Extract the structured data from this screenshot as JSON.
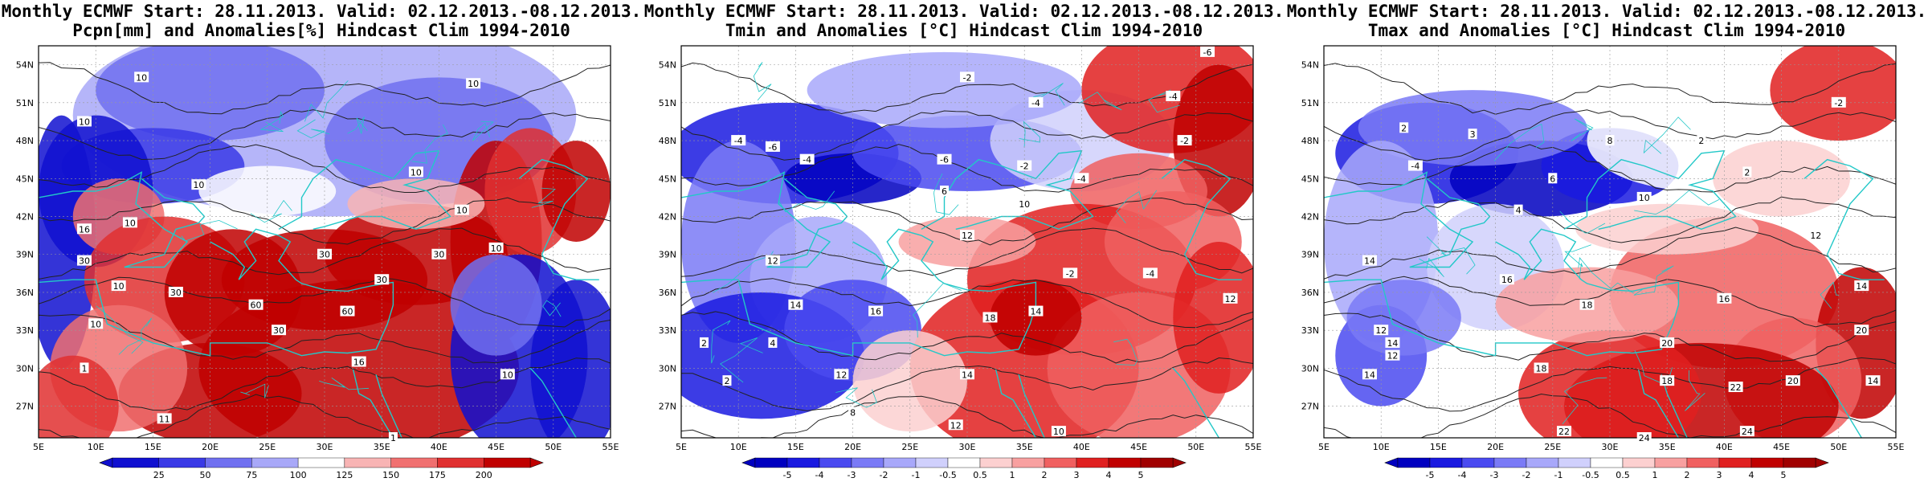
{
  "panels": [
    {
      "id": "precip",
      "title_line1": "Monthly ECMWF Start: 28.11.2013. Valid: 02.12.2013.-08.12.2013.",
      "title_line2": "Pcpn[mm] and Anomalies[%] Hindcast Clim 1994-2010",
      "lat_labels": [
        "54N",
        "51N",
        "48N",
        "45N",
        "42N",
        "39N",
        "36N",
        "33N",
        "30N",
        "27N"
      ],
      "lon_labels": [
        "5E",
        "10E",
        "15E",
        "20E",
        "25E",
        "30E",
        "35E",
        "40E",
        "45E",
        "50E",
        "55E"
      ],
      "colorbar_ticks": [
        "25",
        "50",
        "75",
        "100",
        "125",
        "150",
        "175",
        "200"
      ],
      "colorbar_colors": [
        "#1010d0",
        "#3a3ae6",
        "#7070f0",
        "#a8a8f8",
        "#ffffff",
        "#f8b4b4",
        "#f07070",
        "#e03030",
        "#c00000"
      ],
      "contour_labels": [
        {
          "t": "10",
          "lon": 14,
          "lat": 53
        },
        {
          "t": "10",
          "lon": 43,
          "lat": 52.5
        },
        {
          "t": "10",
          "lon": 9,
          "lat": 49.5
        },
        {
          "t": "10",
          "lon": 19,
          "lat": 44.5
        },
        {
          "t": "10",
          "lon": 38,
          "lat": 45.5
        },
        {
          "t": "10",
          "lon": 42,
          "lat": 42.5
        },
        {
          "t": "10",
          "lon": 13,
          "lat": 41.5
        },
        {
          "t": "16",
          "lon": 9,
          "lat": 41
        },
        {
          "t": "30",
          "lon": 9,
          "lat": 38.5
        },
        {
          "t": "10",
          "lon": 12,
          "lat": 36.5
        },
        {
          "t": "30",
          "lon": 17,
          "lat": 36
        },
        {
          "t": "60",
          "lon": 24,
          "lat": 35
        },
        {
          "t": "30",
          "lon": 26,
          "lat": 33
        },
        {
          "t": "60",
          "lon": 32,
          "lat": 34.5
        },
        {
          "t": "30",
          "lon": 35,
          "lat": 37
        },
        {
          "t": "30",
          "lon": 40,
          "lat": 39
        },
        {
          "t": "10",
          "lon": 45,
          "lat": 39.5
        },
        {
          "t": "30",
          "lon": 30,
          "lat": 39
        },
        {
          "t": "16",
          "lon": 33,
          "lat": 30.5
        },
        {
          "t": "10",
          "lon": 46,
          "lat": 29.5
        },
        {
          "t": "1",
          "lon": 9,
          "lat": 30
        },
        {
          "t": "11",
          "lon": 16,
          "lat": 26
        },
        {
          "t": "1",
          "lon": 36,
          "lat": 24.5
        },
        {
          "t": "10",
          "lon": 10,
          "lat": 33.5
        }
      ]
    },
    {
      "id": "tmin",
      "title_line1": "Monthly ECMWF Start: 28.11.2013. Valid: 02.12.2013.-08.12.2013.",
      "title_line2": "Tmin and Anomalies [°C] Hindcast Clim 1994-2010",
      "lat_labels": [
        "54N",
        "51N",
        "48N",
        "45N",
        "42N",
        "39N",
        "36N",
        "33N",
        "30N",
        "27N"
      ],
      "lon_labels": [
        "5E",
        "10E",
        "15E",
        "20E",
        "25E",
        "30E",
        "35E",
        "40E",
        "45E",
        "50E",
        "55E"
      ],
      "colorbar_ticks": [
        "-5",
        "-4",
        "-3",
        "-2",
        "-1",
        "-0.5",
        "0.5",
        "1",
        "2",
        "3",
        "4",
        "5"
      ],
      "colorbar_colors": [
        "#0000c0",
        "#1a1ae0",
        "#4a4af0",
        "#7a7af6",
        "#a8a8fa",
        "#d0d0fc",
        "#ffffff",
        "#fcd0d0",
        "#f8a0a0",
        "#f06060",
        "#e02020",
        "#c00000",
        "#a00000"
      ],
      "contour_labels": [
        {
          "t": "-6",
          "lon": 51,
          "lat": 55
        },
        {
          "t": "-2",
          "lon": 30,
          "lat": 53
        },
        {
          "t": "-4",
          "lon": 36,
          "lat": 51
        },
        {
          "t": "-4",
          "lon": 48,
          "lat": 51.5
        },
        {
          "t": "-2",
          "lon": 49,
          "lat": 48
        },
        {
          "t": "-4",
          "lon": 10,
          "lat": 48
        },
        {
          "t": "-6",
          "lon": 13,
          "lat": 47.5
        },
        {
          "t": "-4",
          "lon": 16,
          "lat": 46.5
        },
        {
          "t": "-6",
          "lon": 28,
          "lat": 46.5
        },
        {
          "t": "-2",
          "lon": 35,
          "lat": 46
        },
        {
          "t": "-4",
          "lon": 40,
          "lat": 45
        },
        {
          "t": "10",
          "lon": 35,
          "lat": 43
        },
        {
          "t": "6",
          "lon": 28,
          "lat": 44
        },
        {
          "t": "12",
          "lon": 30,
          "lat": 40.5
        },
        {
          "t": "12",
          "lon": 13,
          "lat": 38.5
        },
        {
          "t": "14",
          "lon": 15,
          "lat": 35
        },
        {
          "t": "16",
          "lon": 22,
          "lat": 34.5
        },
        {
          "t": "18",
          "lon": 32,
          "lat": 34
        },
        {
          "t": "14",
          "lon": 36,
          "lat": 34.5
        },
        {
          "t": "-2",
          "lon": 39,
          "lat": 37.5
        },
        {
          "t": "-4",
          "lon": 46,
          "lat": 37.5
        },
        {
          "t": "12",
          "lon": 53,
          "lat": 35.5
        },
        {
          "t": "2",
          "lon": 7,
          "lat": 32
        },
        {
          "t": "4",
          "lon": 13,
          "lat": 32
        },
        {
          "t": "12",
          "lon": 19,
          "lat": 29.5
        },
        {
          "t": "14",
          "lon": 30,
          "lat": 29.5
        },
        {
          "t": "12",
          "lon": 29,
          "lat": 25.5
        },
        {
          "t": "10",
          "lon": 38,
          "lat": 25
        },
        {
          "t": "2",
          "lon": 9,
          "lat": 29
        },
        {
          "t": "8",
          "lon": 20,
          "lat": 26.5
        }
      ]
    },
    {
      "id": "tmax",
      "title_line1": "Monthly ECMWF Start: 28.11.2013. Valid: 02.12.2013.-08.12.2013.",
      "title_line2": "Tmax and Anomalies [°C] Hindcast Clim 1994-2010",
      "lat_labels": [
        "54N",
        "51N",
        "48N",
        "45N",
        "42N",
        "39N",
        "36N",
        "33N",
        "30N",
        "27N"
      ],
      "lon_labels": [
        "5E",
        "10E",
        "15E",
        "20E",
        "25E",
        "30E",
        "35E",
        "40E",
        "45E",
        "50E",
        "55E"
      ],
      "colorbar_ticks": [
        "-5",
        "-4",
        "-3",
        "-2",
        "-1",
        "-0.5",
        "0.5",
        "1",
        "2",
        "3",
        "4",
        "5"
      ],
      "colorbar_colors": [
        "#0000c0",
        "#1a1ae0",
        "#4a4af0",
        "#7a7af6",
        "#a8a8fa",
        "#d0d0fc",
        "#ffffff",
        "#fcd0d0",
        "#f8a0a0",
        "#f06060",
        "#e02020",
        "#c00000",
        "#a00000"
      ],
      "contour_labels": [
        {
          "t": "-2",
          "lon": 50,
          "lat": 51
        },
        {
          "t": "2",
          "lon": 12,
          "lat": 49
        },
        {
          "t": "3",
          "lon": 18,
          "lat": 48.5
        },
        {
          "t": "8",
          "lon": 30,
          "lat": 48
        },
        {
          "t": "2",
          "lon": 38,
          "lat": 48
        },
        {
          "t": "-4",
          "lon": 13,
          "lat": 46
        },
        {
          "t": "6",
          "lon": 25,
          "lat": 45
        },
        {
          "t": "2",
          "lon": 42,
          "lat": 45.5
        },
        {
          "t": "10",
          "lon": 33,
          "lat": 43.5
        },
        {
          "t": "4",
          "lon": 22,
          "lat": 42.5
        },
        {
          "t": "12",
          "lon": 48,
          "lat": 40.5
        },
        {
          "t": "14",
          "lon": 9,
          "lat": 38.5
        },
        {
          "t": "16",
          "lon": 21,
          "lat": 37
        },
        {
          "t": "18",
          "lon": 28,
          "lat": 35
        },
        {
          "t": "14",
          "lon": 52,
          "lat": 36.5
        },
        {
          "t": "16",
          "lon": 40,
          "lat": 35.5
        },
        {
          "t": "20",
          "lon": 52,
          "lat": 33
        },
        {
          "t": "12",
          "lon": 10,
          "lat": 33
        },
        {
          "t": "14",
          "lon": 11,
          "lat": 32
        },
        {
          "t": "12",
          "lon": 11,
          "lat": 31
        },
        {
          "t": "14",
          "lon": 9,
          "lat": 29.5
        },
        {
          "t": "18",
          "lon": 24,
          "lat": 30
        },
        {
          "t": "20",
          "lon": 35,
          "lat": 32
        },
        {
          "t": "18",
          "lon": 35,
          "lat": 29
        },
        {
          "t": "22",
          "lon": 41,
          "lat": 28.5
        },
        {
          "t": "20",
          "lon": 46,
          "lat": 29
        },
        {
          "t": "14",
          "lon": 53,
          "lat": 29
        },
        {
          "t": "22",
          "lon": 26,
          "lat": 25
        },
        {
          "t": "24",
          "lon": 33,
          "lat": 24.5
        },
        {
          "t": "24",
          "lon": 42,
          "lat": 25
        }
      ]
    }
  ]
}
